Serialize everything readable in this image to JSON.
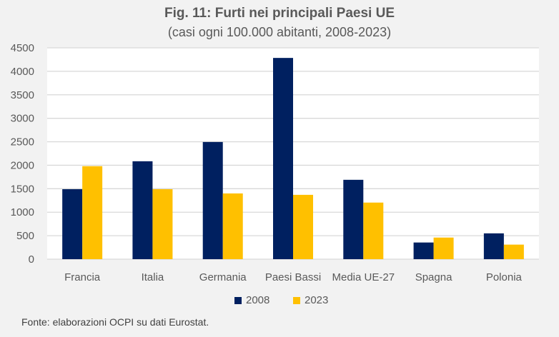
{
  "chart_data": {
    "type": "bar",
    "title": "Fig. 11: Furti nei principali Paesi UE",
    "subtitle": "(casi ogni 100.000 abitanti, 2008-2023)",
    "xlabel": "",
    "ylabel": "",
    "ylim": [
      0,
      4500
    ],
    "yticks": [
      0,
      500,
      1000,
      1500,
      2000,
      2500,
      3000,
      3500,
      4000,
      4500
    ],
    "grid": true,
    "legend_position": "bottom",
    "categories": [
      "Francia",
      "Italia",
      "Germania",
      "Paesi Bassi",
      "Media UE-27",
      "Spagna",
      "Polonia"
    ],
    "series": [
      {
        "name": "2008",
        "color": "#002060",
        "values": [
          1490,
          2085,
          2495,
          4285,
          1690,
          355,
          550
        ]
      },
      {
        "name": "2023",
        "color": "#ffc000",
        "values": [
          1980,
          1490,
          1400,
          1370,
          1205,
          460,
          310
        ]
      }
    ]
  },
  "source": "Fonte: elaborazioni OCPI su dati Eurostat."
}
